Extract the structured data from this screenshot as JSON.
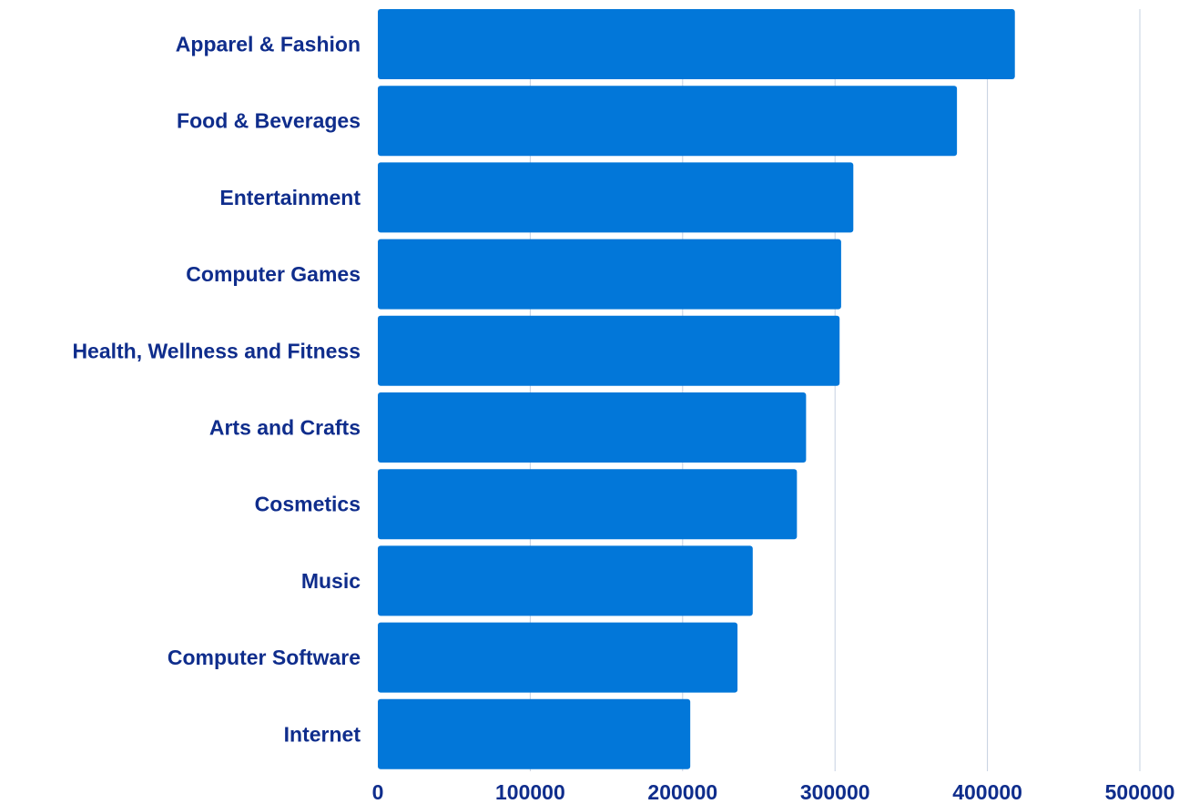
{
  "chart_data": {
    "type": "bar",
    "orientation": "horizontal",
    "title": "",
    "xlabel": "",
    "ylabel": "",
    "categories": [
      "Apparel & Fashion",
      "Food & Beverages",
      "Entertainment",
      "Computer Games",
      "Health, Wellness and Fitness",
      "Arts and Crafts",
      "Cosmetics",
      "Music",
      "Computer Software",
      "Internet"
    ],
    "values": [
      418000,
      380000,
      312000,
      304000,
      303000,
      281000,
      275000,
      246000,
      236000,
      205000
    ],
    "xlim": [
      0,
      500000
    ],
    "xticks": [
      "0",
      "100000",
      "200000",
      "300000",
      "400000",
      "500000"
    ],
    "grid": true,
    "legend": "none",
    "colors": {
      "bar": "#0277d9",
      "label": "#0f2d8c",
      "grid": "#c5d0e0"
    }
  }
}
